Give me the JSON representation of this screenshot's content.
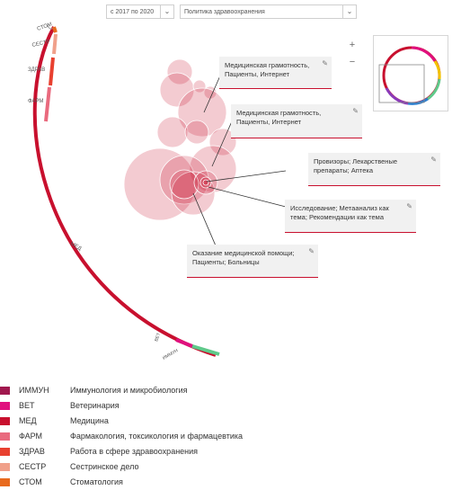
{
  "filters": {
    "year_range": "с 2017 по 2020",
    "topic": "Политика здравоохранения"
  },
  "zoom": {
    "in_label": "+",
    "out_label": "−"
  },
  "arc_labels": [
    "СТОМ",
    "СЕСТР",
    "ЗДРАВ",
    "ФАРМ",
    "МЕД",
    "ВЕТ",
    "ИММУН"
  ],
  "tooltips": [
    {
      "text": "Медицинская грамотность, Пациенты, Интернет",
      "icon": "pin-icon"
    },
    {
      "text": "Медицинская грамотность, Пациенты, Интернет",
      "icon": "pin-icon"
    },
    {
      "text": "Провизоры; Лекарственые препараты; Аптека",
      "icon": "pin-icon"
    },
    {
      "text": "Исследование; Метаанализ как тема; Рекомендации как тема",
      "icon": "pin-icon"
    },
    {
      "text": "Оказание медицинской помощи; Пациенты; Больницы",
      "icon": "pin-icon"
    }
  ],
  "legend": [
    {
      "code": "ИММУН",
      "name": "Иммунология и микробиология",
      "color": "#a0184e"
    },
    {
      "code": "ВЕТ",
      "name": "Ветеринария",
      "color": "#e0107e"
    },
    {
      "code": "МЕД",
      "name": "Медицина",
      "color": "#c8102e"
    },
    {
      "code": "ФАРМ",
      "name": "Фармакология, токсикология и фармацевтика",
      "color": "#e96a7e"
    },
    {
      "code": "ЗДРАВ",
      "name": "Работа в сфере здравоохранения",
      "color": "#e8402f"
    },
    {
      "code": "СЕСТР",
      "name": "Сестринское дело",
      "color": "#f0a08a"
    },
    {
      "code": "СТОМ",
      "name": "Стоматология",
      "color": "#e86a1e"
    }
  ]
}
